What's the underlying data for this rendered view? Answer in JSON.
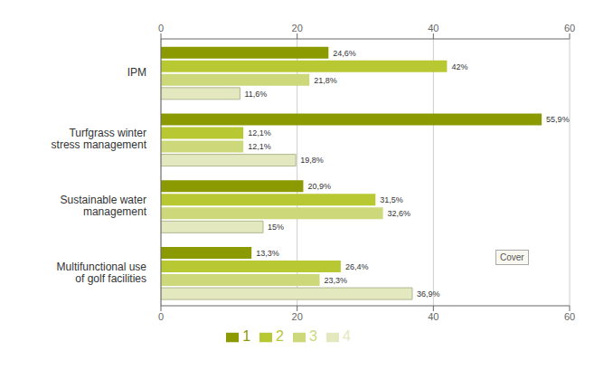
{
  "chart_data": {
    "type": "bar",
    "orientation": "horizontal",
    "categories": [
      "IPM",
      "Turfgrass winter\nstress management",
      "Sustainable water\nmanagement",
      "Multifunctional use\nof golf facilities"
    ],
    "series": [
      {
        "name": "1",
        "color": "#8a9a00",
        "values": [
          24.6,
          55.9,
          20.9,
          13.3
        ],
        "value_labels": [
          "24,6%",
          "55,9%",
          "20,9%",
          "13,3%"
        ]
      },
      {
        "name": "2",
        "color": "#b8c832",
        "values": [
          42.0,
          12.1,
          31.5,
          26.4
        ],
        "value_labels": [
          "42%",
          "12,1%",
          "31,5%",
          "26,4%"
        ]
      },
      {
        "name": "3",
        "color": "#cdd87a",
        "values": [
          21.8,
          12.1,
          32.6,
          23.3
        ],
        "value_labels": [
          "21,8%",
          "12,1%",
          "32,6%",
          "23,3%"
        ]
      },
      {
        "name": "4",
        "color": "#e4e8be",
        "values": [
          11.6,
          19.8,
          15.0,
          36.9
        ],
        "value_labels": [
          "11,6%",
          "19,8%",
          "15%",
          "36,9%"
        ]
      }
    ],
    "xlim": [
      0,
      60
    ],
    "xticks": [
      0,
      20,
      40,
      60
    ],
    "grid": true,
    "legend": "bottom",
    "data_labels": true,
    "annotations": [
      "Cover"
    ]
  }
}
